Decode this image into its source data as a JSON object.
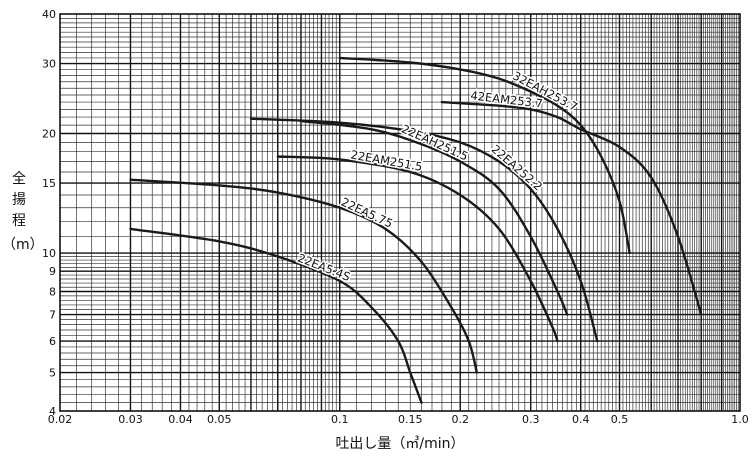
{
  "chart_data": {
    "type": "line",
    "xlabel": "吐出し量（㎥/min）",
    "ylabel_chars": [
      "全",
      "揚",
      "程",
      "（m）"
    ],
    "x_scale": "log",
    "y_scale": "log",
    "xlim": [
      0.02,
      1.0
    ],
    "ylim": [
      4,
      40
    ],
    "x_ticks": [
      {
        "v": 0.02,
        "label": "0.02"
      },
      {
        "v": 0.03,
        "label": "0.03"
      },
      {
        "v": 0.04,
        "label": "0.04"
      },
      {
        "v": 0.05,
        "label": "0.05"
      },
      {
        "v": 0.1,
        "label": "0.1"
      },
      {
        "v": 0.15,
        "label": "0.15"
      },
      {
        "v": 0.2,
        "label": "0.2"
      },
      {
        "v": 0.3,
        "label": "0.3"
      },
      {
        "v": 0.4,
        "label": "0.4"
      },
      {
        "v": 0.5,
        "label": "0.5"
      },
      {
        "v": 1.0,
        "label": "1.0"
      }
    ],
    "y_ticks": [
      {
        "v": 4,
        "label": "4"
      },
      {
        "v": 5,
        "label": "5"
      },
      {
        "v": 6,
        "label": "6"
      },
      {
        "v": 7,
        "label": "7"
      },
      {
        "v": 8,
        "label": "8"
      },
      {
        "v": 9,
        "label": "9"
      },
      {
        "v": 10,
        "label": "10"
      },
      {
        "v": 15,
        "label": "15"
      },
      {
        "v": 20,
        "label": "20"
      },
      {
        "v": 30,
        "label": "30"
      },
      {
        "v": 40,
        "label": "40"
      }
    ],
    "grid": true,
    "series": [
      {
        "name": "32EAH253.7",
        "points": [
          [
            0.1,
            31
          ],
          [
            0.15,
            30.2
          ],
          [
            0.2,
            29
          ],
          [
            0.25,
            27.5
          ],
          [
            0.3,
            25.5
          ],
          [
            0.35,
            23.5
          ],
          [
            0.4,
            21
          ],
          [
            0.45,
            17.5
          ],
          [
            0.5,
            13.5
          ],
          [
            0.53,
            10
          ]
        ]
      },
      {
        "name": "42EAM253.7",
        "points": [
          [
            0.18,
            24
          ],
          [
            0.25,
            23.5
          ],
          [
            0.3,
            23
          ],
          [
            0.35,
            22
          ],
          [
            0.4,
            20.5
          ],
          [
            0.5,
            18.5
          ],
          [
            0.6,
            15.5
          ],
          [
            0.7,
            11
          ],
          [
            0.8,
            7
          ]
        ]
      },
      {
        "name": "22EA252.2",
        "points": [
          [
            0.06,
            21.8
          ],
          [
            0.1,
            21.3
          ],
          [
            0.15,
            20.3
          ],
          [
            0.2,
            19
          ],
          [
            0.25,
            17
          ],
          [
            0.3,
            14.5
          ],
          [
            0.35,
            11.5
          ],
          [
            0.4,
            8.5
          ],
          [
            0.44,
            6
          ]
        ]
      },
      {
        "name": "22EAH251.5",
        "points": [
          [
            0.08,
            21.5
          ],
          [
            0.12,
            20.5
          ],
          [
            0.16,
            18.8
          ],
          [
            0.2,
            17
          ],
          [
            0.25,
            14.5
          ],
          [
            0.3,
            11
          ],
          [
            0.35,
            8
          ],
          [
            0.37,
            7
          ]
        ]
      },
      {
        "name": "22EAM251.5",
        "points": [
          [
            0.07,
            17.5
          ],
          [
            0.1,
            17.2
          ],
          [
            0.15,
            16
          ],
          [
            0.2,
            14
          ],
          [
            0.25,
            11.5
          ],
          [
            0.3,
            8.5
          ],
          [
            0.34,
            6.5
          ],
          [
            0.35,
            6
          ]
        ]
      },
      {
        "name": "22EA5.75",
        "points": [
          [
            0.03,
            15.3
          ],
          [
            0.05,
            14.8
          ],
          [
            0.07,
            14.2
          ],
          [
            0.1,
            13
          ],
          [
            0.13,
            11.5
          ],
          [
            0.16,
            9.5
          ],
          [
            0.19,
            7.3
          ],
          [
            0.21,
            6
          ],
          [
            0.22,
            5
          ]
        ]
      },
      {
        "name": "22EA5.4S",
        "points": [
          [
            0.03,
            11.5
          ],
          [
            0.05,
            10.7
          ],
          [
            0.07,
            9.8
          ],
          [
            0.1,
            8.5
          ],
          [
            0.12,
            7.3
          ],
          [
            0.14,
            6
          ],
          [
            0.15,
            5
          ],
          [
            0.16,
            4.2
          ]
        ]
      }
    ]
  }
}
